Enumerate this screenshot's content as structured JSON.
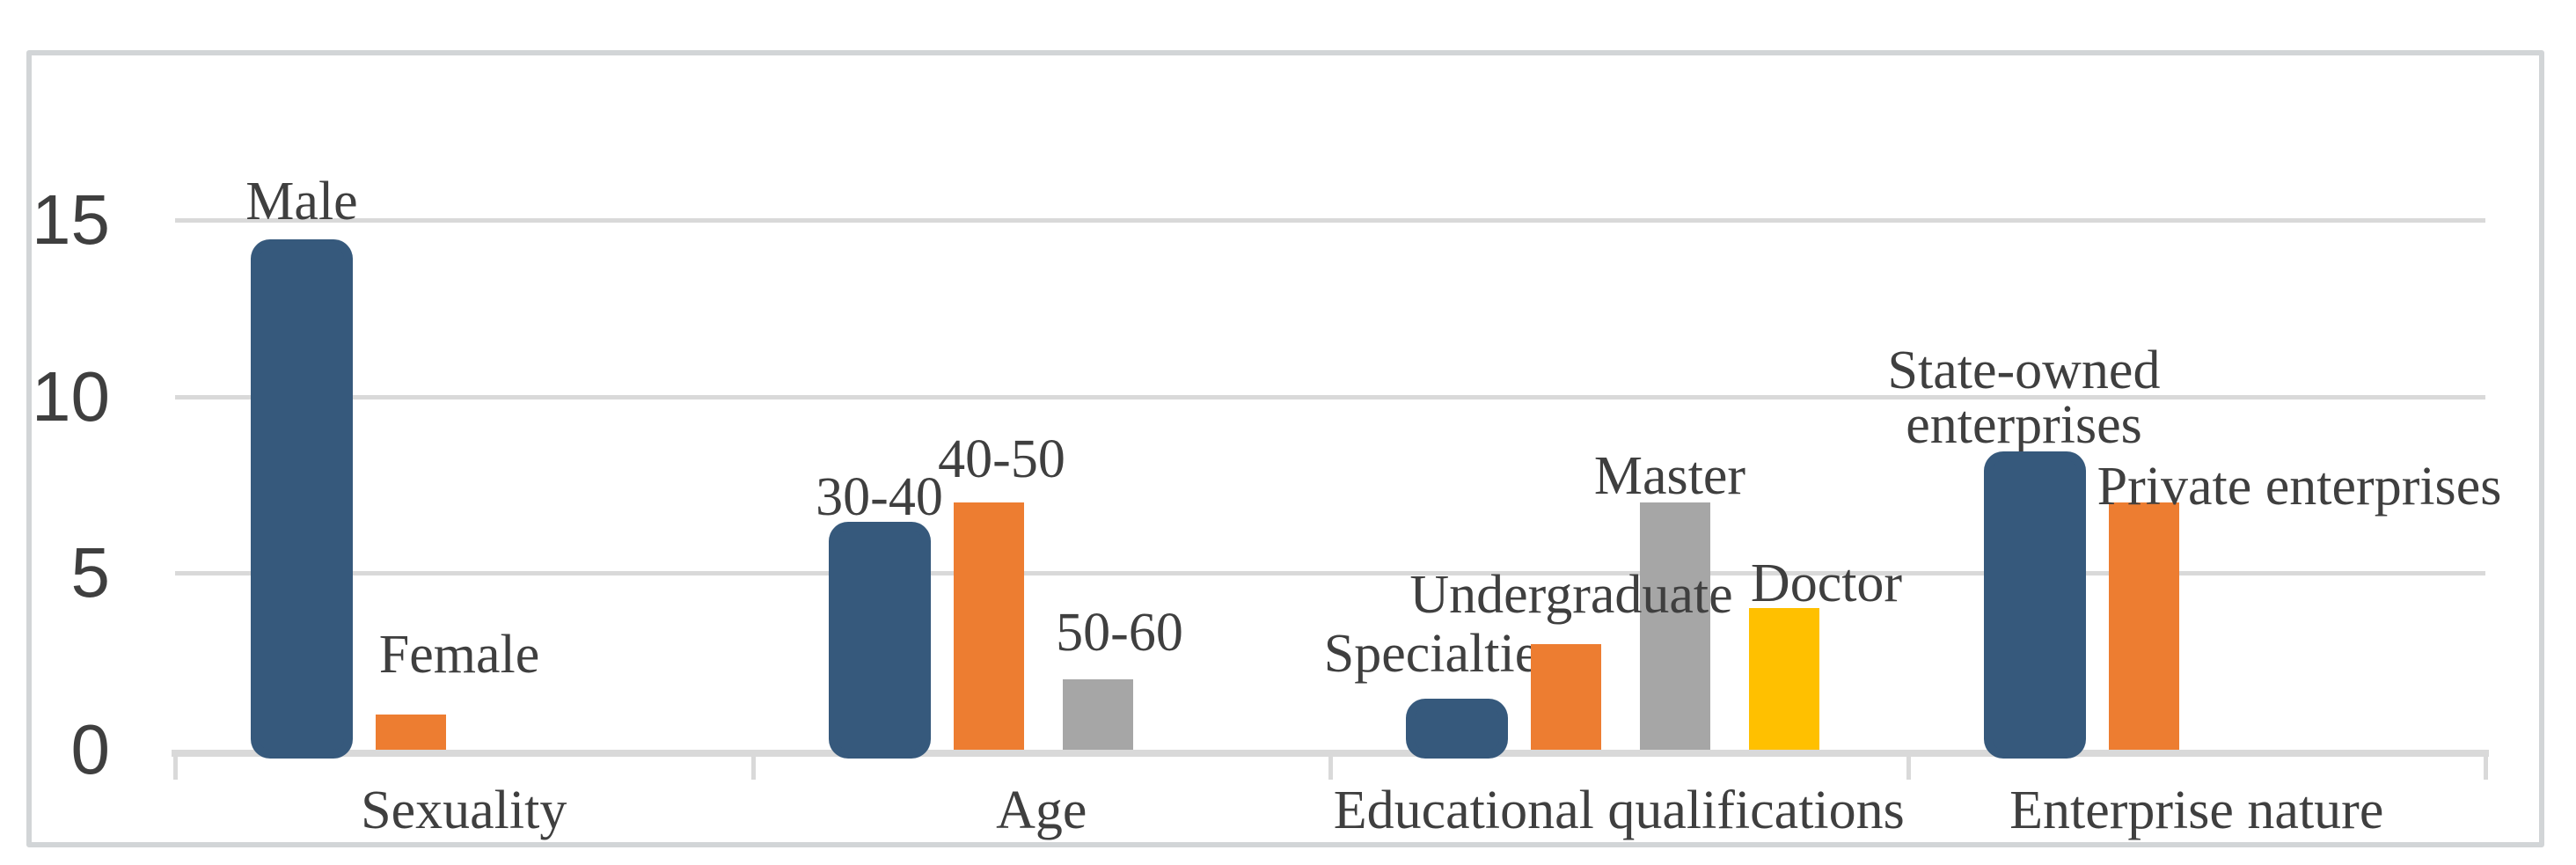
{
  "chart_data": {
    "type": "bar",
    "title": "",
    "xlabel": "",
    "ylabel": "",
    "ylim": [
      0,
      15
    ],
    "yticks": [
      0,
      5,
      10,
      15
    ],
    "grid": true,
    "legend": "none",
    "text_color": "#3F3F3F",
    "axis_color": "#D9D9D9",
    "series_colors": [
      "#36597C",
      "#ED7D31",
      "#A6A6A6",
      "#FFC000"
    ],
    "series1_style": {
      "fill": "#36597C",
      "inner_border": "#FFFFFF",
      "outer_outline": "#36597C"
    },
    "groups": [
      {
        "label": "Sexuality",
        "bars": [
          {
            "name": "Male",
            "lines": [
              "Male"
            ],
            "value": 14,
            "series": 1
          },
          {
            "name": "Female",
            "lines": [
              "Female"
            ],
            "value": 1,
            "series": 2
          }
        ]
      },
      {
        "label": "Age",
        "bars": [
          {
            "name": "30-40",
            "lines": [
              "30-40"
            ],
            "value": 6,
            "series": 1
          },
          {
            "name": "40-50",
            "lines": [
              "40-50"
            ],
            "value": 7,
            "series": 2
          },
          {
            "name": "50-60",
            "lines": [
              "50-60"
            ],
            "value": 2,
            "series": 3
          }
        ]
      },
      {
        "label": "Educational qualifications",
        "bars": [
          {
            "name": "Specialtie",
            "lines": [
              "Specialtie"
            ],
            "value": 1,
            "series": 1
          },
          {
            "name": "Undergraduate",
            "lines": [
              "Undergraduate"
            ],
            "value": 3,
            "series": 2
          },
          {
            "name": "Master",
            "lines": [
              "Master"
            ],
            "value": 7,
            "series": 3
          },
          {
            "name": "Doctor",
            "lines": [
              "Doctor"
            ],
            "value": 4,
            "series": 4
          }
        ]
      },
      {
        "label": "Enterprise nature",
        "bars": [
          {
            "name": "State-owned enterprises",
            "lines": [
              "State-owned",
              "enterprises"
            ],
            "value": 8,
            "series": 1
          },
          {
            "name": "Private enterprises",
            "lines": [
              "Private enterprises"
            ],
            "value": 7,
            "series": 2
          }
        ]
      }
    ]
  }
}
